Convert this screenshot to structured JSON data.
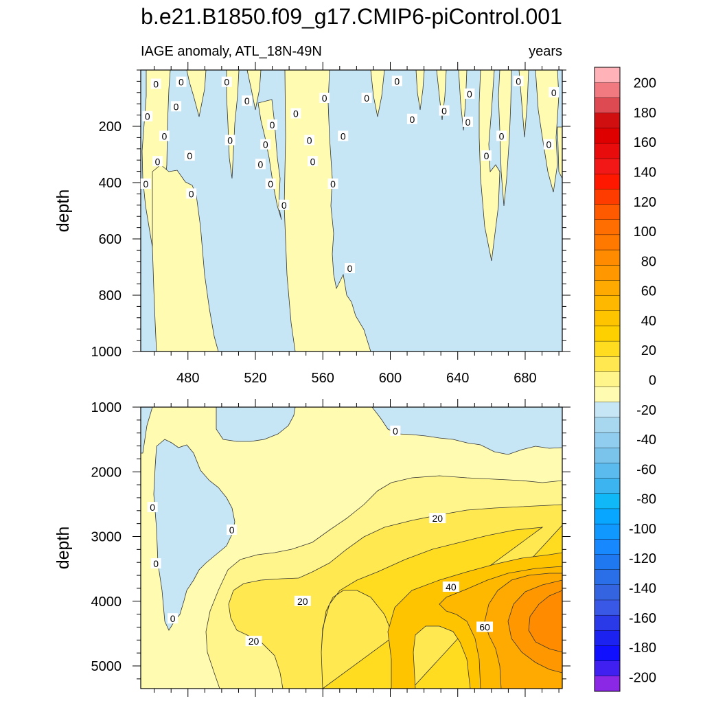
{
  "title": "b.e21.B1850.f09_g17.CMIP6-piControl.001",
  "chart_data": {
    "type": "contour",
    "title": "b.e21.B1850.f09_g17.CMIP6-piControl.001",
    "subtitle_left": "IAGE anomaly, ATL_18N-49N",
    "subtitle_right": "years",
    "x_range": [
      452,
      702
    ],
    "x_ticks": [
      480,
      520,
      560,
      600,
      640,
      680
    ],
    "colorbar": {
      "min": -210,
      "max": 210,
      "step": 10,
      "tick_labels": [
        "200",
        "180",
        "160",
        "140",
        "120",
        "100",
        "80",
        "60",
        "40",
        "20",
        "0",
        "-20",
        "-40",
        "-60",
        "-80",
        "-100",
        "-120",
        "-140",
        "-160",
        "-180",
        "-200"
      ],
      "colors_high_to_low": [
        "#ffb3b8",
        "#f07a80",
        "#de4a52",
        "#d01010",
        "#de0000",
        "#e80c0c",
        "#f21818",
        "#ff1800",
        "#ff3c00",
        "#ff5a00",
        "#ff6e00",
        "#ff7800",
        "#ff8c00",
        "#ff9800",
        "#ffaa00",
        "#ffb800",
        "#ffc400",
        "#ffd000",
        "#ffdc20",
        "#ffe850",
        "#fff58a",
        "#fffbb0",
        "#c6e6f6",
        "#a8d8f0",
        "#90cdee",
        "#7ac4ec",
        "#5cbbee",
        "#3cb4f0",
        "#10b8f8",
        "#08a6ff",
        "#1098ff",
        "#1888ff",
        "#2078f0",
        "#2a6ee8",
        "#3464e0",
        "#3a58e6",
        "#2a3ae8",
        "#1c22f0",
        "#1010ff",
        "#4020f0",
        "#8a28e6"
      ]
    },
    "panels": [
      {
        "name": "upper",
        "ylabel": "depth",
        "y_range": [
          0,
          1000
        ],
        "y_ticks": [
          200,
          400,
          600,
          800,
          1000
        ],
        "positive_plumes": [
          {
            "x_left": 456,
            "x_right_top": 472,
            "x_right_bottom": 498
          },
          {
            "x_left": 530,
            "x_right_top": 560,
            "x_right_bottom": 588
          }
        ],
        "contour_labels": [
          {
            "text": "0",
            "x": 461,
            "y": 50
          },
          {
            "text": "0",
            "x": 476,
            "y": 43
          },
          {
            "text": "0",
            "x": 503,
            "y": 43
          },
          {
            "text": "0",
            "x": 515,
            "y": 110
          },
          {
            "text": "0",
            "x": 456,
            "y": 165
          },
          {
            "text": "0",
            "x": 473,
            "y": 130
          },
          {
            "text": "0",
            "x": 466,
            "y": 235
          },
          {
            "text": "0",
            "x": 462,
            "y": 325
          },
          {
            "text": "0",
            "x": 455,
            "y": 405
          },
          {
            "text": "0",
            "x": 482,
            "y": 440
          },
          {
            "text": "0",
            "x": 481,
            "y": 305
          },
          {
            "text": "0",
            "x": 505,
            "y": 250
          },
          {
            "text": "0",
            "x": 523,
            "y": 335
          },
          {
            "text": "0",
            "x": 526,
            "y": 265
          },
          {
            "text": "0",
            "x": 530,
            "y": 195
          },
          {
            "text": "0",
            "x": 529,
            "y": 405
          },
          {
            "text": "0",
            "x": 537,
            "y": 480
          },
          {
            "text": "0",
            "x": 544,
            "y": 155
          },
          {
            "text": "0",
            "x": 552,
            "y": 250
          },
          {
            "text": "0",
            "x": 554,
            "y": 325
          },
          {
            "text": "0",
            "x": 561,
            "y": 100
          },
          {
            "text": "0",
            "x": 572,
            "y": 235
          },
          {
            "text": "0",
            "x": 566,
            "y": 405
          },
          {
            "text": "0",
            "x": 576,
            "y": 705
          },
          {
            "text": "0",
            "x": 586,
            "y": 100
          },
          {
            "text": "0",
            "x": 604,
            "y": 40
          },
          {
            "text": "0",
            "x": 613,
            "y": 175
          },
          {
            "text": "0",
            "x": 632,
            "y": 145
          },
          {
            "text": "0",
            "x": 647,
            "y": 85
          },
          {
            "text": "0",
            "x": 646,
            "y": 185
          },
          {
            "text": "0",
            "x": 657,
            "y": 305
          },
          {
            "text": "0",
            "x": 666,
            "y": 235
          },
          {
            "text": "0",
            "x": 676,
            "y": 40
          },
          {
            "text": "0",
            "x": 694,
            "y": 265
          },
          {
            "text": "0",
            "x": 697,
            "y": 80
          }
        ]
      },
      {
        "name": "lower",
        "ylabel": "depth",
        "y_range": [
          1000,
          5350
        ],
        "y_ticks": [
          1000,
          2000,
          3000,
          4000,
          5000
        ],
        "contour_labels": [
          {
            "text": "0",
            "x": 603,
            "y": 1370
          },
          {
            "text": "0",
            "x": 459,
            "y": 2550
          },
          {
            "text": "0",
            "x": 506,
            "y": 2900
          },
          {
            "text": "0",
            "x": 461,
            "y": 3420
          },
          {
            "text": "0",
            "x": 471,
            "y": 4270
          },
          {
            "text": "20",
            "x": 628,
            "y": 2720
          },
          {
            "text": "20",
            "x": 548,
            "y": 4000
          },
          {
            "text": "20",
            "x": 519,
            "y": 4620
          },
          {
            "text": "40",
            "x": 636,
            "y": 3780
          },
          {
            "text": "60",
            "x": 656,
            "y": 4400
          }
        ]
      }
    ]
  }
}
